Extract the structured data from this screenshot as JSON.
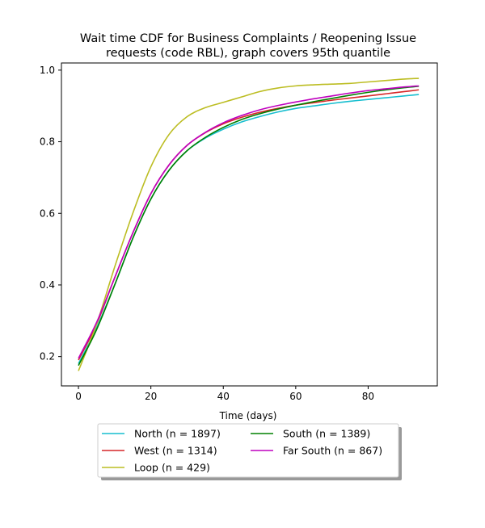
{
  "chart_data": {
    "type": "line",
    "title_line1": "Wait time CDF for Business Complaints / Reopening Issue",
    "title_line2": "requests (code RBL), graph covers 95th quantile",
    "xlabel": "Time (days)",
    "ylabel": "",
    "xlim": [
      -4.7,
      99.1
    ],
    "ylim": [
      0.118,
      1.02
    ],
    "xticks": [
      0,
      20,
      40,
      60,
      80
    ],
    "yticks": [
      0.2,
      0.4,
      0.6,
      0.8,
      1.0
    ],
    "xtick_labels": [
      "0",
      "20",
      "40",
      "60",
      "80"
    ],
    "ytick_labels": [
      "0.2",
      "0.4",
      "0.6",
      "0.8",
      "1.0"
    ],
    "legend_position": "below plot, two columns",
    "series": [
      {
        "name": "North (n = 1897)",
        "color": "#17becf",
        "x": [
          0,
          5,
          10,
          15,
          20,
          25,
          30,
          35,
          40,
          45,
          50,
          55,
          60,
          65,
          70,
          75,
          80,
          85,
          90,
          94
        ],
        "y": [
          0.18,
          0.28,
          0.4,
          0.53,
          0.64,
          0.72,
          0.775,
          0.81,
          0.835,
          0.855,
          0.87,
          0.883,
          0.893,
          0.9,
          0.907,
          0.913,
          0.918,
          0.923,
          0.928,
          0.932
        ]
      },
      {
        "name": "West (n = 1314)",
        "color": "#d62728",
        "x": [
          0,
          5,
          10,
          15,
          20,
          25,
          30,
          35,
          40,
          45,
          50,
          55,
          60,
          65,
          70,
          75,
          80,
          85,
          90,
          94
        ],
        "y": [
          0.19,
          0.29,
          0.42,
          0.545,
          0.655,
          0.735,
          0.79,
          0.825,
          0.85,
          0.868,
          0.882,
          0.893,
          0.902,
          0.909,
          0.916,
          0.922,
          0.928,
          0.934,
          0.94,
          0.945
        ]
      },
      {
        "name": "Loop (n = 429)",
        "color": "#bcbd22",
        "x": [
          0,
          5,
          10,
          15,
          20,
          25,
          30,
          35,
          40,
          45,
          50,
          55,
          60,
          65,
          70,
          75,
          80,
          85,
          90,
          94
        ],
        "y": [
          0.16,
          0.29,
          0.45,
          0.6,
          0.73,
          0.82,
          0.87,
          0.895,
          0.91,
          0.925,
          0.94,
          0.95,
          0.956,
          0.959,
          0.961,
          0.963,
          0.967,
          0.971,
          0.975,
          0.977
        ]
      },
      {
        "name": "South (n = 1389)",
        "color": "#008000",
        "x": [
          0,
          5,
          10,
          15,
          20,
          25,
          30,
          35,
          40,
          45,
          50,
          55,
          60,
          65,
          70,
          75,
          80,
          85,
          90,
          94
        ],
        "y": [
          0.175,
          0.275,
          0.4,
          0.53,
          0.64,
          0.72,
          0.775,
          0.812,
          0.84,
          0.862,
          0.878,
          0.891,
          0.902,
          0.912,
          0.921,
          0.93,
          0.938,
          0.945,
          0.951,
          0.955
        ]
      },
      {
        "name": "Far South (n = 867)",
        "color": "#bf00bf",
        "x": [
          0,
          5,
          10,
          15,
          20,
          25,
          30,
          35,
          40,
          45,
          50,
          55,
          60,
          65,
          70,
          75,
          80,
          85,
          90,
          94
        ],
        "y": [
          0.195,
          0.295,
          0.42,
          0.545,
          0.655,
          0.735,
          0.79,
          0.826,
          0.853,
          0.873,
          0.889,
          0.901,
          0.911,
          0.92,
          0.928,
          0.936,
          0.943,
          0.948,
          0.953,
          0.956
        ]
      }
    ]
  }
}
